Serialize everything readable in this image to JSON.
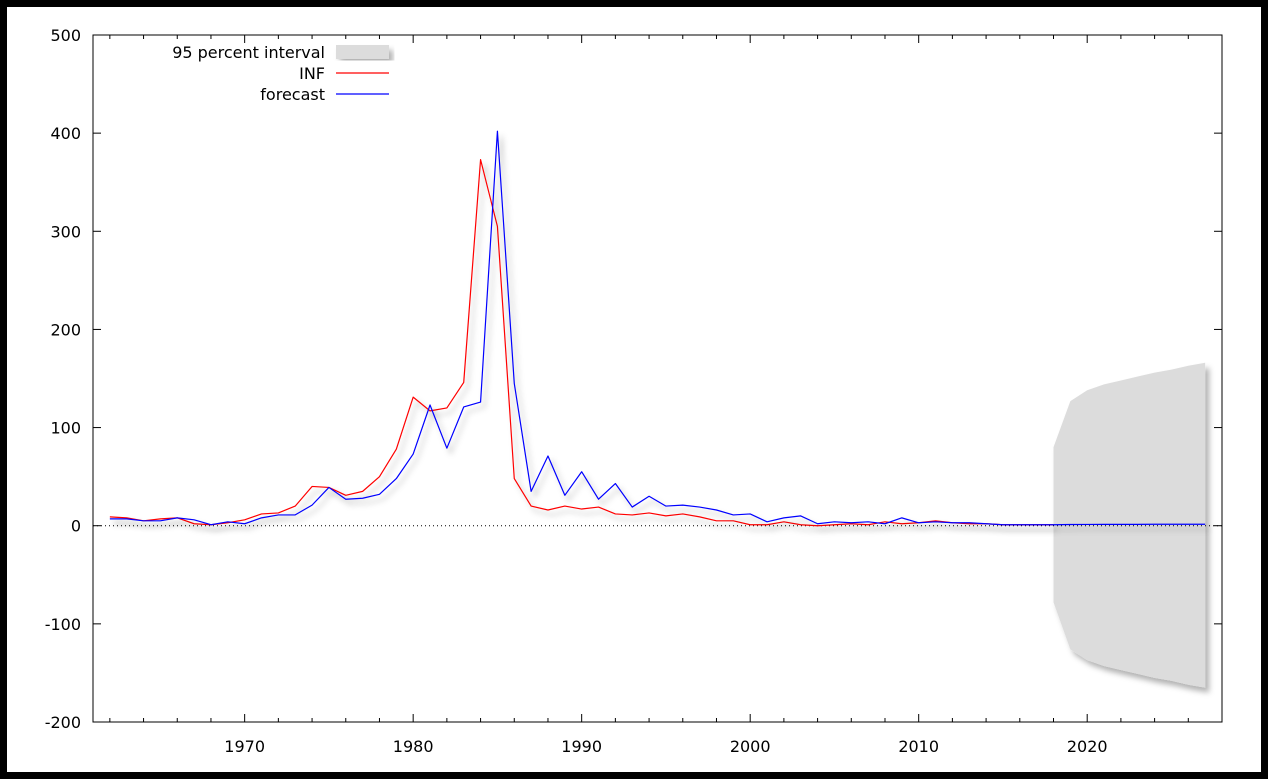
{
  "chart_data": {
    "type": "line",
    "title": "",
    "xlabel": "",
    "ylabel": "",
    "xlim": [
      1961,
      2028
    ],
    "ylim": [
      -200,
      500
    ],
    "grid": false,
    "legend_position": "top-left",
    "zero_line": "dotted",
    "y_ticks": [
      -200,
      -100,
      0,
      100,
      200,
      300,
      400,
      500
    ],
    "y_tick_labels": [
      "-200",
      "-100",
      "0",
      "100",
      "200",
      "300",
      "400",
      "500"
    ],
    "x_ticks": [
      1970,
      1980,
      1990,
      2000,
      2010,
      2020
    ],
    "x_tick_labels": [
      "1970",
      "1980",
      "1990",
      "2000",
      "2010",
      "2020"
    ],
    "legend": [
      {
        "label": "95 percent interval",
        "kind": "band",
        "color": "#dcdcdc"
      },
      {
        "label": "INF",
        "kind": "line",
        "color": "#ff0000"
      },
      {
        "label": "forecast",
        "kind": "line",
        "color": "#0000ff"
      }
    ],
    "series": [
      {
        "name": "INF",
        "color": "#ff0000",
        "x": [
          1962,
          1963,
          1964,
          1965,
          1966,
          1967,
          1968,
          1969,
          1970,
          1971,
          1972,
          1973,
          1974,
          1975,
          1976,
          1977,
          1978,
          1979,
          1980,
          1981,
          1982,
          1983,
          1984,
          1985,
          1986,
          1987,
          1988,
          1989,
          1990,
          1991,
          1992,
          1993,
          1994,
          1995,
          1996,
          1997,
          1998,
          1999,
          2000,
          2001,
          2002,
          2003,
          2004,
          2005,
          2006,
          2007,
          2008,
          2009,
          2010,
          2011,
          2012,
          2013,
          2014,
          2015,
          2016,
          2017,
          2018
        ],
        "values": [
          9,
          8,
          5,
          7,
          8,
          2,
          1,
          3,
          6,
          12,
          13,
          20,
          40,
          39,
          31,
          35,
          50,
          78,
          131,
          117,
          120,
          146,
          373,
          305,
          48,
          20,
          16,
          20,
          17,
          19,
          12,
          11,
          13,
          10,
          12,
          9,
          5,
          5,
          1,
          1,
          4,
          1,
          0,
          1,
          2,
          1,
          4,
          2,
          3,
          5,
          3,
          2,
          2,
          1,
          1,
          1,
          1
        ]
      },
      {
        "name": "forecast",
        "color": "#0000ff",
        "x": [
          1962,
          1963,
          1964,
          1965,
          1966,
          1967,
          1968,
          1969,
          1970,
          1971,
          1972,
          1973,
          1974,
          1975,
          1976,
          1977,
          1978,
          1979,
          1980,
          1981,
          1982,
          1983,
          1984,
          1985,
          1986,
          1987,
          1988,
          1989,
          1990,
          1991,
          1992,
          1993,
          1994,
          1995,
          1996,
          1997,
          1998,
          1999,
          2000,
          2001,
          2002,
          2003,
          2004,
          2005,
          2006,
          2007,
          2008,
          2009,
          2010,
          2011,
          2012,
          2013,
          2014,
          2015,
          2016,
          2017,
          2018,
          2019,
          2020,
          2021,
          2022,
          2023,
          2024,
          2025,
          2026,
          2027
        ],
        "values": [
          7,
          7,
          5,
          5,
          8,
          6,
          1,
          4,
          2,
          8,
          11,
          11,
          21,
          39,
          27,
          28,
          32,
          48,
          73,
          123,
          79,
          121,
          126,
          402,
          145,
          35,
          71,
          31,
          55,
          27,
          43,
          19,
          30,
          20,
          21,
          19,
          16,
          11,
          12,
          4,
          8,
          10,
          2,
          4,
          3,
          4,
          2,
          8,
          3,
          4,
          3,
          3,
          2,
          1,
          1,
          1,
          1,
          1.2,
          1.3,
          1.4,
          1.4,
          1.4,
          1.5,
          1.5,
          1.5,
          1.5
        ]
      }
    ],
    "interval": {
      "name": "95 percent interval",
      "color": "#dcdcdc",
      "x": [
        2018,
        2019,
        2020,
        2021,
        2022,
        2023,
        2024,
        2025,
        2026,
        2027
      ],
      "lower": [
        -78,
        -126,
        -137,
        -143,
        -147,
        -151,
        -155,
        -158,
        -162,
        -165
      ],
      "upper": [
        80,
        127,
        138,
        144,
        148,
        152,
        156,
        159,
        163,
        166
      ]
    }
  }
}
